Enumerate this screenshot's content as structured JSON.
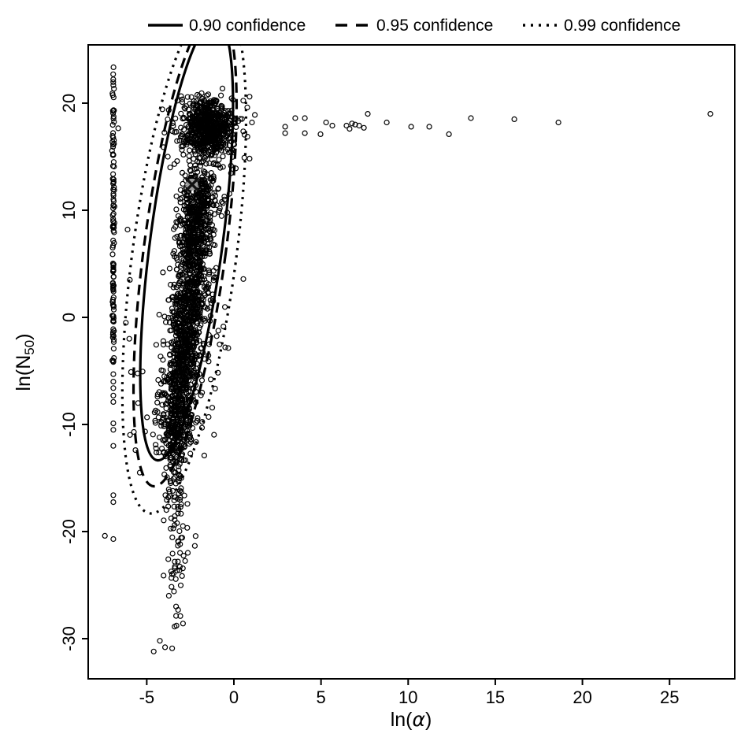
{
  "figure": {
    "background": "#ffffff",
    "foreground": "#000000",
    "marker_color": "#000000",
    "center_marker_color": "#9a9a9a"
  },
  "legend": {
    "position": "top",
    "items": [
      {
        "label": "0.90 confidence",
        "line_style": "solid"
      },
      {
        "label": "0.95 confidence",
        "line_style": "dashed"
      },
      {
        "label": "0.99 confidence",
        "line_style": "dotted"
      }
    ]
  },
  "chart_data": {
    "type": "scatter",
    "title": "",
    "xlabel": "ln(α)",
    "ylabel": "ln(N50)",
    "xlabel_parts": {
      "prefix": "ln(",
      "symbol": "α",
      "suffix": ")"
    },
    "ylabel_parts": {
      "prefix": "ln(N",
      "sub": "50",
      "suffix": ")"
    },
    "xlim": [
      -8.36,
      28.74
    ],
    "ylim": [
      -33.75,
      25.44
    ],
    "x_ticks": [
      -5,
      0,
      5,
      10,
      15,
      20,
      25
    ],
    "y_ticks": [
      -30,
      -20,
      -10,
      0,
      10,
      20
    ],
    "grid": false,
    "point_marker": "open-circle",
    "confidence_ellipses": [
      {
        "label": "0.90 confidence",
        "style": "solid",
        "cx": -2.71,
        "cy": 7.21,
        "rx": 2.08,
        "ry": 20.74,
        "rot_deg": 7.6
      },
      {
        "label": "0.95 confidence",
        "style": "dashed",
        "cx": -2.8,
        "cy": 6.47,
        "rx": 2.35,
        "ry": 22.43,
        "rot_deg": 7.6
      },
      {
        "label": "0.99 confidence",
        "style": "dotted",
        "cx": -2.85,
        "cy": 5.74,
        "rx": 2.98,
        "ry": 24.26,
        "rot_deg": 7.6
      }
    ],
    "center_marker": {
      "x": -2.4,
      "y": 12.4
    },
    "generated_clusters": [
      {
        "name": "strip-dense",
        "kind": "uniform-y",
        "n": 115,
        "x": -6.92,
        "x_sigma": 0.025,
        "y_min": -4.2,
        "y_max": 22.7
      },
      {
        "name": "top-blob",
        "kind": "gauss",
        "n": 620,
        "cx": -1.55,
        "cy": 17.7,
        "sx": 0.72,
        "sy": 1.35,
        "y_max": 21.9
      },
      {
        "name": "top-blob-halo",
        "kind": "gauss",
        "n": 80,
        "cx": -1.6,
        "cy": 17.5,
        "sx": 1.05,
        "sy": 1.9,
        "y_max": 21.9
      },
      {
        "name": "band",
        "kind": "line",
        "n": 1500,
        "x1": -1.85,
        "y1": 13.2,
        "x2": -3.35,
        "y2": -11.5,
        "sx": 0.48,
        "sy": 1.1,
        "t_pow": 1
      },
      {
        "name": "band-halo",
        "kind": "line",
        "n": 200,
        "x1": -1.85,
        "y1": 13.0,
        "x2": -3.35,
        "y2": -11.5,
        "sx": 0.95,
        "sy": 1.6,
        "t_pow": 1
      },
      {
        "name": "funnel",
        "kind": "line",
        "n": 120,
        "x1": -3.35,
        "y1": -11.5,
        "x2": -3.1,
        "y2": -23.5,
        "sx": 0.38,
        "sy": 0.9,
        "t_pow": 1.5
      },
      {
        "name": "tail",
        "kind": "line",
        "n": 18,
        "x1": -3.25,
        "y1": -23.5,
        "x2": -3.3,
        "y2": -30.3,
        "sx": 0.32,
        "sy": 0.5,
        "t_pow": 1.2
      }
    ],
    "explicit_points": {
      "upper_band": [
        [
          2.94,
          17.8
        ],
        [
          2.94,
          17.2
        ],
        [
          3.52,
          18.6
        ],
        [
          4.07,
          18.6
        ],
        [
          4.07,
          17.2
        ],
        [
          4.97,
          17.1
        ],
        [
          5.29,
          18.2
        ],
        [
          5.65,
          17.9
        ],
        [
          6.46,
          17.9
        ],
        [
          6.64,
          17.6
        ],
        [
          6.78,
          18.1
        ],
        [
          6.96,
          18.0
        ],
        [
          7.19,
          17.9
        ],
        [
          7.46,
          17.7
        ],
        [
          7.68,
          19.0
        ],
        [
          8.77,
          18.2
        ],
        [
          10.17,
          17.8
        ],
        [
          11.21,
          17.8
        ],
        [
          12.34,
          17.1
        ],
        [
          13.6,
          18.6
        ],
        [
          16.09,
          18.5
        ],
        [
          18.62,
          18.2
        ],
        [
          27.34,
          19.0
        ]
      ],
      "strip_sparse": [
        [
          -6.91,
          23.35
        ],
        [
          -6.64,
          17.65
        ],
        [
          -6.92,
          -5.3
        ],
        [
          -6.92,
          -6.0
        ],
        [
          -6.92,
          -6.6
        ],
        [
          -6.92,
          -7.3
        ],
        [
          -6.92,
          -7.9
        ],
        [
          -6.92,
          -9.9
        ],
        [
          -6.92,
          -10.5
        ],
        [
          -6.92,
          -12.0
        ],
        [
          -6.92,
          -16.6
        ],
        [
          -6.92,
          -17.25
        ],
        [
          -6.92,
          -20.7
        ]
      ],
      "left_outliers": [
        [
          -5.97,
          3.5
        ],
        [
          -6.1,
          8.2
        ],
        [
          -5.74,
          -10.7
        ],
        [
          -5.65,
          -12.4
        ],
        [
          -5.4,
          -14.5
        ],
        [
          -7.4,
          -20.4
        ],
        [
          -6.0,
          -2.0
        ],
        [
          -5.9,
          -5.1
        ],
        [
          -6.2,
          -0.5
        ],
        [
          -5.5,
          -8.0
        ]
      ],
      "right_outliers": [
        [
          0.77,
          19.6
        ],
        [
          1.04,
          18.2
        ],
        [
          0.9,
          20.6
        ],
        [
          1.2,
          18.9
        ],
        [
          0.6,
          14.9
        ],
        [
          -1.7,
          -12.9
        ],
        [
          -1.45,
          -9.3
        ]
      ],
      "bottom_tail": [
        [
          -4.6,
          -31.2
        ],
        [
          -4.25,
          -30.2
        ],
        [
          -3.95,
          -30.8
        ]
      ]
    }
  }
}
